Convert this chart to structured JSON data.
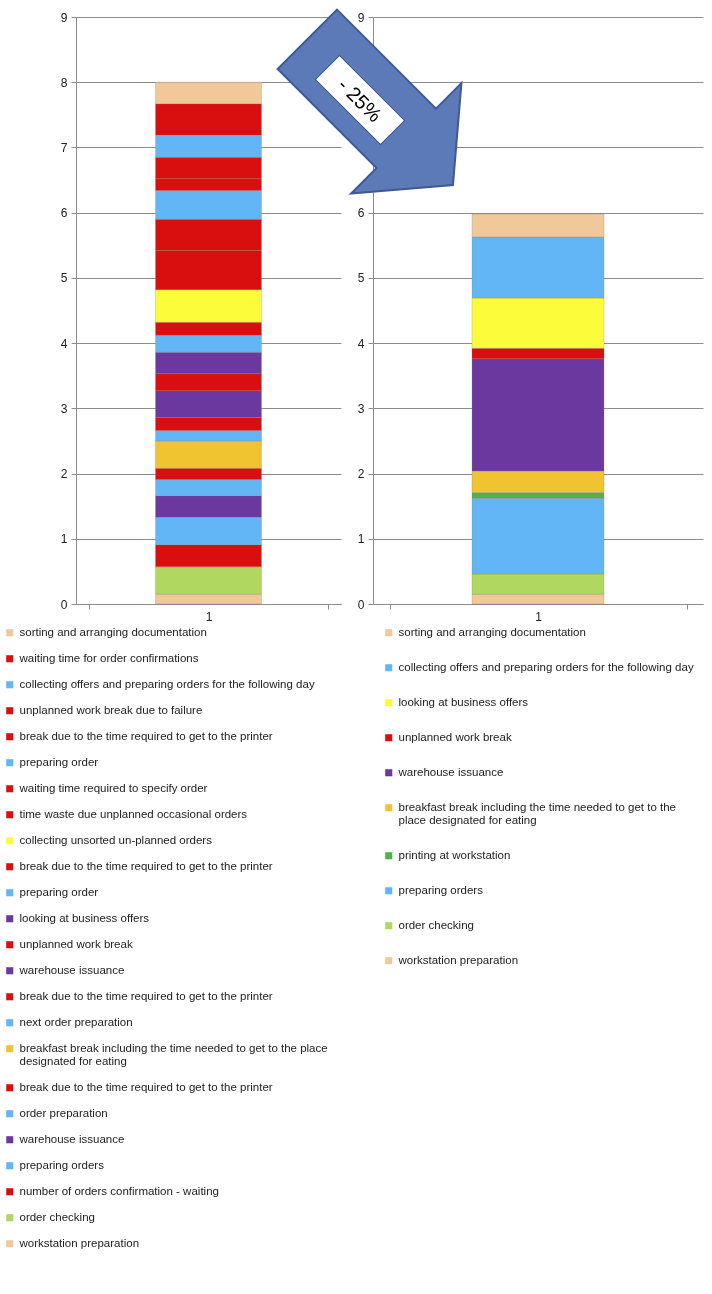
{
  "chart_data": [
    {
      "type": "bar",
      "stacked": true,
      "categories": [
        "1"
      ],
      "ylim": [
        0,
        9
      ],
      "yticks": [
        0,
        1,
        2,
        3,
        4,
        5,
        6,
        7,
        8,
        9
      ],
      "grid": "y",
      "legend": "bottom",
      "series": [
        {
          "name": "workstation preparation",
          "color": "#f0c89a",
          "values": [
            0.15
          ]
        },
        {
          "name": "order checking",
          "color": "#b0d760",
          "values": [
            0.42
          ]
        },
        {
          "name": "number of orders confirmation - waiting",
          "color": "#d90f0f",
          "values": [
            0.34
          ]
        },
        {
          "name": "preparing orders",
          "color": "#63b6f5",
          "values": [
            0.42
          ]
        },
        {
          "name": "warehouse issuance",
          "color": "#6b389f",
          "values": [
            0.33
          ]
        },
        {
          "name": "order preparation",
          "color": "#63b6f5",
          "values": [
            0.25
          ]
        },
        {
          "name": "break due to the time required to get to the printer",
          "color": "#d90f0f",
          "values": [
            0.17
          ]
        },
        {
          "name": "breakfast break including the time needed to get to the place designated for eating",
          "color": "#f0c430",
          "values": [
            0.42
          ]
        },
        {
          "name": "next order preparation",
          "color": "#63b6f5",
          "values": [
            0.16
          ]
        },
        {
          "name": "break due to the time required to get to the printer",
          "color": "#d90f0f",
          "values": [
            0.2
          ]
        },
        {
          "name": "warehouse issuance",
          "color": "#6b389f",
          "values": [
            0.41
          ]
        },
        {
          "name": "unplanned work break",
          "color": "#d90f0f",
          "values": [
            0.26
          ]
        },
        {
          "name": "looking at business offers",
          "color": "#6b389f",
          "values": [
            0.33
          ]
        },
        {
          "name": "preparing order",
          "color": "#63b6f5",
          "values": [
            0.26
          ]
        },
        {
          "name": "break due to the time required to get to the printer",
          "color": "#d90f0f",
          "values": [
            0.2
          ]
        },
        {
          "name": "collecting unsorted un-planned  orders",
          "color": "#fcfc3a",
          "values": [
            0.5
          ]
        },
        {
          "name": "time waste due unplanned  occasional orders",
          "color": "#d90f0f",
          "values": [
            0.6
          ]
        },
        {
          "name": "waiting time required to specify order",
          "color": "#d90f0f",
          "values": [
            0.48
          ]
        },
        {
          "name": "preparing order",
          "color": "#63b6f5",
          "values": [
            0.44
          ]
        },
        {
          "name": "break due to the time required to get to the printer",
          "color": "#d90f0f",
          "values": [
            0.18
          ]
        },
        {
          "name": "unplanned work break  due to failure",
          "color": "#d90f0f",
          "values": [
            0.33
          ]
        },
        {
          "name": "collecting offers and preparing orders for the following day",
          "color": "#63b6f5",
          "values": [
            0.34
          ]
        },
        {
          "name": "waiting time for order confirmations",
          "color": "#d90f0f",
          "values": [
            0.48
          ]
        },
        {
          "name": "sorting and arranging  documentation",
          "color": "#f0c89a",
          "values": [
            0.33
          ]
        }
      ]
    },
    {
      "type": "bar",
      "stacked": true,
      "categories": [
        "1"
      ],
      "ylim": [
        0,
        9
      ],
      "yticks": [
        0,
        1,
        2,
        3,
        4,
        5,
        6,
        {
          "value": 7,
          "label": null
        },
        {
          "value": 8,
          "label": null
        },
        9
      ],
      "grid": "y",
      "legend": "bottom",
      "annotations": [
        "- 25%"
      ],
      "series": [
        {
          "name": "workstation preparation",
          "color": "#f0c89a",
          "values": [
            0.15
          ]
        },
        {
          "name": "order checking",
          "color": "#b0d760",
          "values": [
            0.31
          ]
        },
        {
          "name": "preparing orders",
          "color": "#63b6f5",
          "values": [
            1.16
          ]
        },
        {
          "name": "printing at workstation",
          "color": "#52b050",
          "values": [
            0.09
          ]
        },
        {
          "name": "breakfast break including the time needed to get to the place designated for eating",
          "color": "#f0c430",
          "values": [
            0.33
          ]
        },
        {
          "name": "warehouse issuance",
          "color": "#6b389f",
          "values": [
            1.72
          ]
        },
        {
          "name": "unplanned work break",
          "color": "#d90f0f",
          "values": [
            0.16
          ]
        },
        {
          "name": "looking at business offers",
          "color": "#fcfc3a",
          "values": [
            0.77
          ]
        },
        {
          "name": "collecting offers and preparing orders for the following day",
          "color": "#63b6f5",
          "values": [
            0.94
          ]
        },
        {
          "name": "sorting and arranging  documentation",
          "color": "#f0c89a",
          "values": [
            0.35
          ]
        }
      ]
    }
  ]
}
